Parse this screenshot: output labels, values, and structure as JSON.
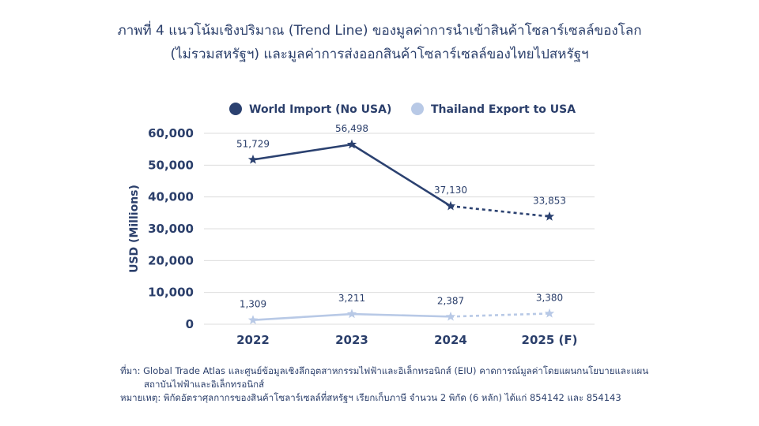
{
  "chart_data": {
    "type": "line",
    "title": "ภาพที่ 4 แนวโน้มเชิงปริมาณ (Trend Line) ของมูลค่าการนำเข้าสินค้าโซลาร์เซลล์ของโลก",
    "subtitle": "(ไม่รวมสหรัฐฯ) และมูลค่าการส่งออกสินค้าโซลาร์เซลล์ของไทยไปสหรัฐฯ",
    "xlabel": "",
    "ylabel": "USD (Millions)",
    "categories": [
      "2022",
      "2023",
      "2024",
      "2025 (F)"
    ],
    "y_ticks": [
      "0",
      "10,000",
      "20,000",
      "30,000",
      "40,000",
      "50,000",
      "60,000"
    ],
    "ylim": [
      0,
      60000
    ],
    "grid": true,
    "legend_position": "top",
    "series": [
      {
        "name": "World Import (No USA)",
        "values": [
          51729,
          56498,
          37130,
          33853
        ],
        "labels": [
          "51,729",
          "56,498",
          "37,130",
          "33,853"
        ],
        "color": "#2b4170",
        "forecast_from_index": 2
      },
      {
        "name": "Thailand Export to USA",
        "values": [
          1309,
          3211,
          2387,
          3380
        ],
        "labels": [
          "1,309",
          "3,211",
          "2,387",
          "3,380"
        ],
        "color": "#b8c9e6",
        "forecast_from_index": 2
      }
    ]
  },
  "notes": {
    "source": "ที่มา: Global Trade Atlas และศูนย์ข้อมูลเชิงลึกอุตสาหกรรมไฟฟ้าและอิเล็กทรอนิกส์ (EIU) คาดการณ์มูลค่าโดยแผนกนโยบายและแผน",
    "source_cont": "สถาบันไฟฟ้าและอิเล็กทรอนิกส์",
    "remark": "หมายเหตุ: พิกัดอัตราศุลกากรของสินค้าโซลาร์เซลล์ที่สหรัฐฯ เรียกเก็บภาษี จำนวน 2 พิกัด (6 หลัก) ได้แก่ 854142 และ 854143"
  }
}
